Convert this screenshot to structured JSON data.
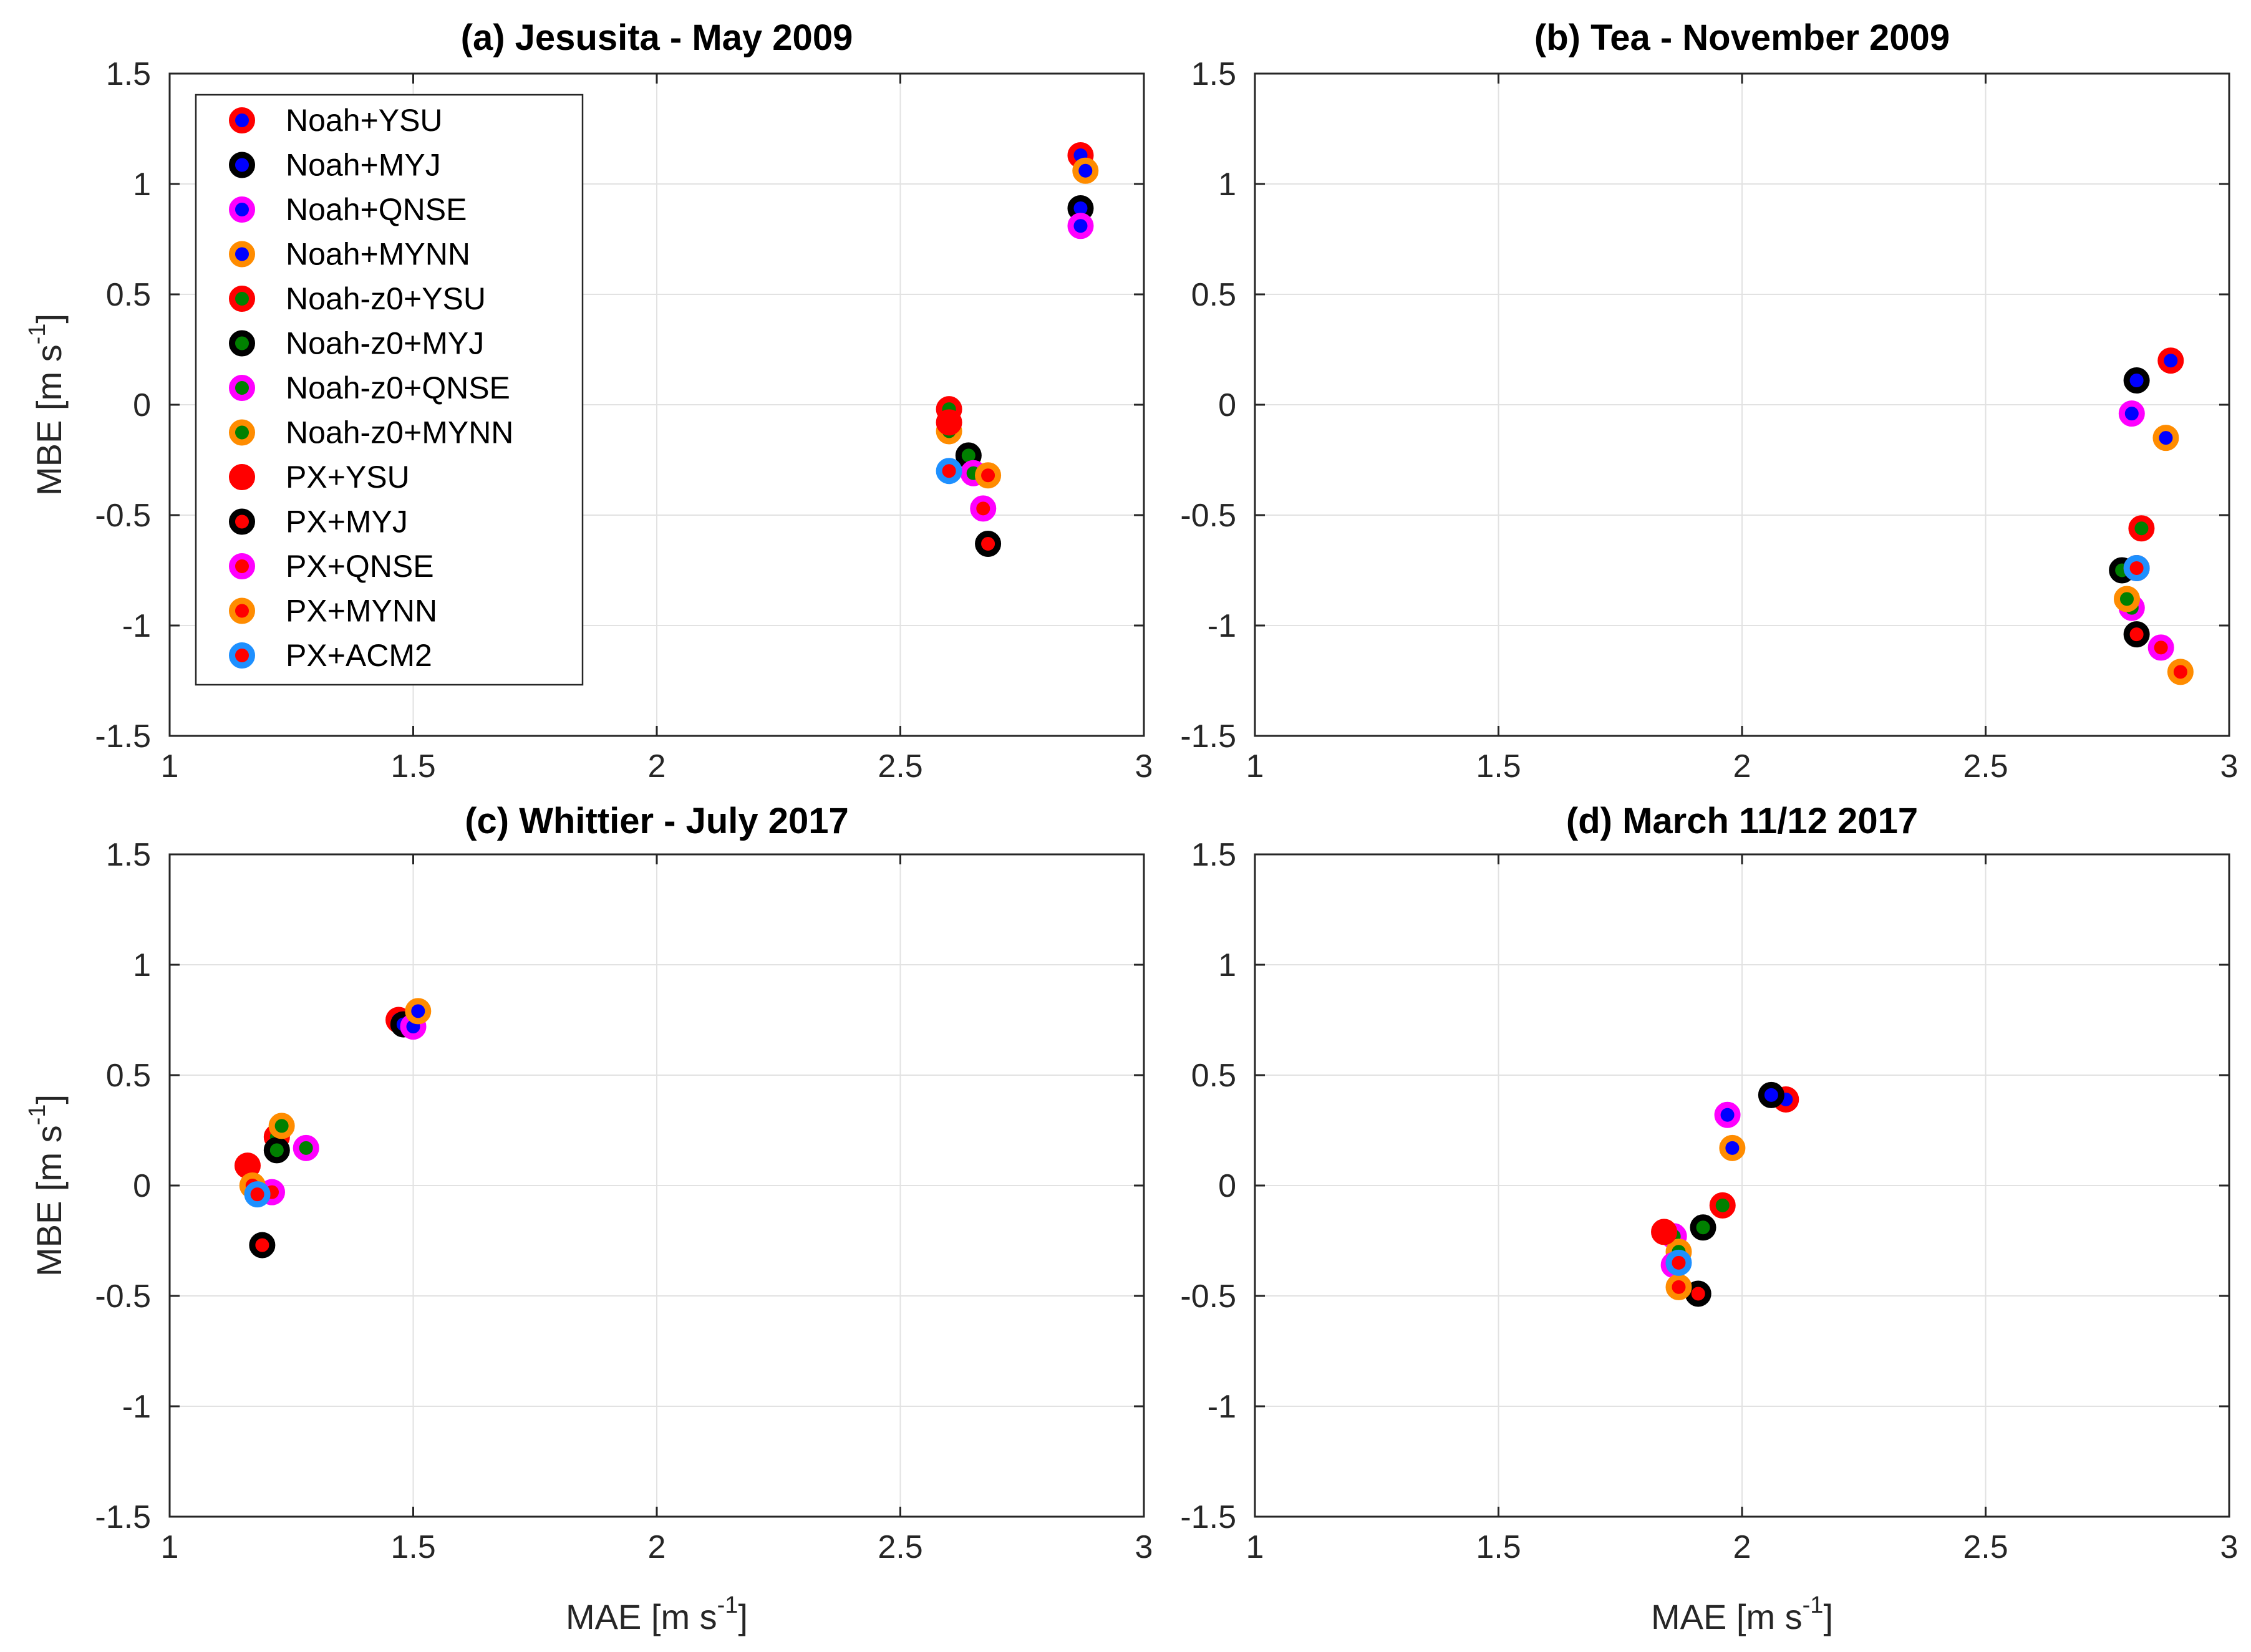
{
  "figure": {
    "xlabel": "MAE [m s",
    "ylabel": "MBE [m s",
    "unit_exponent": "-1",
    "unit_close": "]"
  },
  "legend": [
    {
      "label": "Noah+YSU",
      "edge": "#ff0000",
      "face": "#0000ff"
    },
    {
      "label": "Noah+MYJ",
      "edge": "#000000",
      "face": "#0000ff"
    },
    {
      "label": "Noah+QNSE",
      "edge": "#ff00ff",
      "face": "#0000ff"
    },
    {
      "label": "Noah+MYNN",
      "edge": "#ff8c00",
      "face": "#0000ff"
    },
    {
      "label": "Noah-z0+YSU",
      "edge": "#ff0000",
      "face": "#008000"
    },
    {
      "label": "Noah-z0+MYJ",
      "edge": "#000000",
      "face": "#008000"
    },
    {
      "label": "Noah-z0+QNSE",
      "edge": "#ff00ff",
      "face": "#008000"
    },
    {
      "label": "Noah-z0+MYNN",
      "edge": "#ff8c00",
      "face": "#008000"
    },
    {
      "label": "PX+YSU",
      "edge": "#ff0000",
      "face": "#ff0000"
    },
    {
      "label": "PX+MYJ",
      "edge": "#000000",
      "face": "#ff0000"
    },
    {
      "label": "PX+QNSE",
      "edge": "#ff00ff",
      "face": "#ff0000"
    },
    {
      "label": "PX+MYNN",
      "edge": "#ff8c00",
      "face": "#ff0000"
    },
    {
      "label": "PX+ACM2",
      "edge": "#1e90ff",
      "face": "#ff0000"
    }
  ],
  "chart_data": [
    {
      "type": "scatter",
      "title": "(a) Jesusita - May 2009",
      "xlim": [
        1,
        3
      ],
      "ylim": [
        -1.5,
        1.5
      ],
      "xticks": [
        1,
        1.5,
        2,
        2.5,
        3
      ],
      "yticks": [
        -1.5,
        -1,
        -0.5,
        0,
        0.5,
        1,
        1.5
      ],
      "xtick_labels": [
        "1",
        "1.5",
        "2",
        "2.5",
        "3"
      ],
      "ytick_labels": [
        "-1.5",
        "-1",
        "-0.5",
        "0",
        "0.5",
        "1",
        "1.5"
      ],
      "grid": true,
      "legend_position": "top-left",
      "points": [
        {
          "series": "Noah+YSU",
          "x": 2.87,
          "y": 1.13
        },
        {
          "series": "Noah+MYJ",
          "x": 2.87,
          "y": 0.89
        },
        {
          "series": "Noah+QNSE",
          "x": 2.87,
          "y": 0.81
        },
        {
          "series": "Noah+MYNN",
          "x": 2.88,
          "y": 1.06
        },
        {
          "series": "Noah-z0+YSU",
          "x": 2.6,
          "y": -0.02
        },
        {
          "series": "Noah-z0+MYJ",
          "x": 2.64,
          "y": -0.23
        },
        {
          "series": "Noah-z0+QNSE",
          "x": 2.65,
          "y": -0.31
        },
        {
          "series": "Noah-z0+MYNN",
          "x": 2.6,
          "y": -0.12
        },
        {
          "series": "PX+YSU",
          "x": 2.6,
          "y": -0.08
        },
        {
          "series": "PX+MYJ",
          "x": 2.68,
          "y": -0.63
        },
        {
          "series": "PX+QNSE",
          "x": 2.67,
          "y": -0.47
        },
        {
          "series": "PX+MYNN",
          "x": 2.68,
          "y": -0.32
        },
        {
          "series": "PX+ACM2",
          "x": 2.6,
          "y": -0.3
        }
      ]
    },
    {
      "type": "scatter",
      "title": "(b) Tea - November 2009",
      "xlim": [
        1,
        3
      ],
      "ylim": [
        -1.5,
        1.5
      ],
      "xticks": [
        1,
        1.5,
        2,
        2.5,
        3
      ],
      "yticks": [
        -1.5,
        -1,
        -0.5,
        0,
        0.5,
        1,
        1.5
      ],
      "xtick_labels": [
        "1",
        "1.5",
        "2",
        "2.5",
        "3"
      ],
      "ytick_labels": [
        "-1.5",
        "-1",
        "-0.5",
        "0",
        "0.5",
        "1",
        "1.5"
      ],
      "grid": true,
      "points": [
        {
          "series": "Noah+YSU",
          "x": 2.88,
          "y": 0.2
        },
        {
          "series": "Noah+MYJ",
          "x": 2.81,
          "y": 0.11
        },
        {
          "series": "Noah+QNSE",
          "x": 2.8,
          "y": -0.04
        },
        {
          "series": "Noah+MYNN",
          "x": 2.87,
          "y": -0.15
        },
        {
          "series": "Noah-z0+YSU",
          "x": 2.82,
          "y": -0.56
        },
        {
          "series": "Noah-z0+MYJ",
          "x": 2.78,
          "y": -0.75
        },
        {
          "series": "Noah-z0+QNSE",
          "x": 2.8,
          "y": -0.92
        },
        {
          "series": "Noah-z0+MYNN",
          "x": 2.79,
          "y": -0.88
        },
        {
          "series": "PX+YSU",
          "x": 2.81,
          "y": -0.74
        },
        {
          "series": "PX+MYJ",
          "x": 2.81,
          "y": -1.04
        },
        {
          "series": "PX+QNSE",
          "x": 2.86,
          "y": -1.1
        },
        {
          "series": "PX+MYNN",
          "x": 2.9,
          "y": -1.21
        },
        {
          "series": "PX+ACM2",
          "x": 2.81,
          "y": -0.74
        }
      ]
    },
    {
      "type": "scatter",
      "title": "(c) Whittier - July 2017",
      "xlim": [
        1,
        3
      ],
      "ylim": [
        -1.5,
        1.5
      ],
      "xticks": [
        1,
        1.5,
        2,
        2.5,
        3
      ],
      "yticks": [
        -1.5,
        -1,
        -0.5,
        0,
        0.5,
        1,
        1.5
      ],
      "xtick_labels": [
        "1",
        "1.5",
        "2",
        "2.5",
        "3"
      ],
      "ytick_labels": [
        "-1.5",
        "-1",
        "-0.5",
        "0",
        "0.5",
        "1",
        "1.5"
      ],
      "grid": true,
      "points": [
        {
          "series": "Noah+YSU",
          "x": 1.47,
          "y": 0.75
        },
        {
          "series": "Noah+MYJ",
          "x": 1.48,
          "y": 0.73
        },
        {
          "series": "Noah+QNSE",
          "x": 1.5,
          "y": 0.72
        },
        {
          "series": "Noah+MYNN",
          "x": 1.51,
          "y": 0.79
        },
        {
          "series": "Noah-z0+YSU",
          "x": 1.22,
          "y": 0.22
        },
        {
          "series": "Noah-z0+MYJ",
          "x": 1.22,
          "y": 0.16
        },
        {
          "series": "Noah-z0+QNSE",
          "x": 1.28,
          "y": 0.17
        },
        {
          "series": "Noah-z0+MYNN",
          "x": 1.23,
          "y": 0.27
        },
        {
          "series": "PX+YSU",
          "x": 1.16,
          "y": 0.09
        },
        {
          "series": "PX+MYJ",
          "x": 1.19,
          "y": -0.27
        },
        {
          "series": "PX+QNSE",
          "x": 1.21,
          "y": -0.03
        },
        {
          "series": "PX+MYNN",
          "x": 1.17,
          "y": 0.0
        },
        {
          "series": "PX+ACM2",
          "x": 1.18,
          "y": -0.04
        }
      ]
    },
    {
      "type": "scatter",
      "title": "(d) March 11/12 2017",
      "xlim": [
        1,
        3
      ],
      "ylim": [
        -1.5,
        1.5
      ],
      "xticks": [
        1,
        1.5,
        2,
        2.5,
        3
      ],
      "yticks": [
        -1.5,
        -1,
        -0.5,
        0,
        0.5,
        1,
        1.5
      ],
      "xtick_labels": [
        "1",
        "1.5",
        "2",
        "2.5",
        "3"
      ],
      "ytick_labels": [
        "-1.5",
        "-1",
        "-0.5",
        "0",
        "0.5",
        "1",
        "1.5"
      ],
      "grid": true,
      "points": [
        {
          "series": "Noah+YSU",
          "x": 2.09,
          "y": 0.39
        },
        {
          "series": "Noah+MYJ",
          "x": 2.06,
          "y": 0.41
        },
        {
          "series": "Noah+QNSE",
          "x": 1.97,
          "y": 0.32
        },
        {
          "series": "Noah+MYNN",
          "x": 1.98,
          "y": 0.17
        },
        {
          "series": "Noah-z0+YSU",
          "x": 1.96,
          "y": -0.09
        },
        {
          "series": "Noah-z0+MYJ",
          "x": 1.92,
          "y": -0.19
        },
        {
          "series": "Noah-z0+QNSE",
          "x": 1.86,
          "y": -0.23
        },
        {
          "series": "Noah-z0+MYNN",
          "x": 1.87,
          "y": -0.3
        },
        {
          "series": "PX+YSU",
          "x": 1.84,
          "y": -0.21
        },
        {
          "series": "PX+MYJ",
          "x": 1.91,
          "y": -0.49
        },
        {
          "series": "PX+QNSE",
          "x": 1.86,
          "y": -0.36
        },
        {
          "series": "PX+MYNN",
          "x": 1.87,
          "y": -0.46
        },
        {
          "series": "PX+ACM2",
          "x": 1.87,
          "y": -0.35
        }
      ]
    }
  ]
}
